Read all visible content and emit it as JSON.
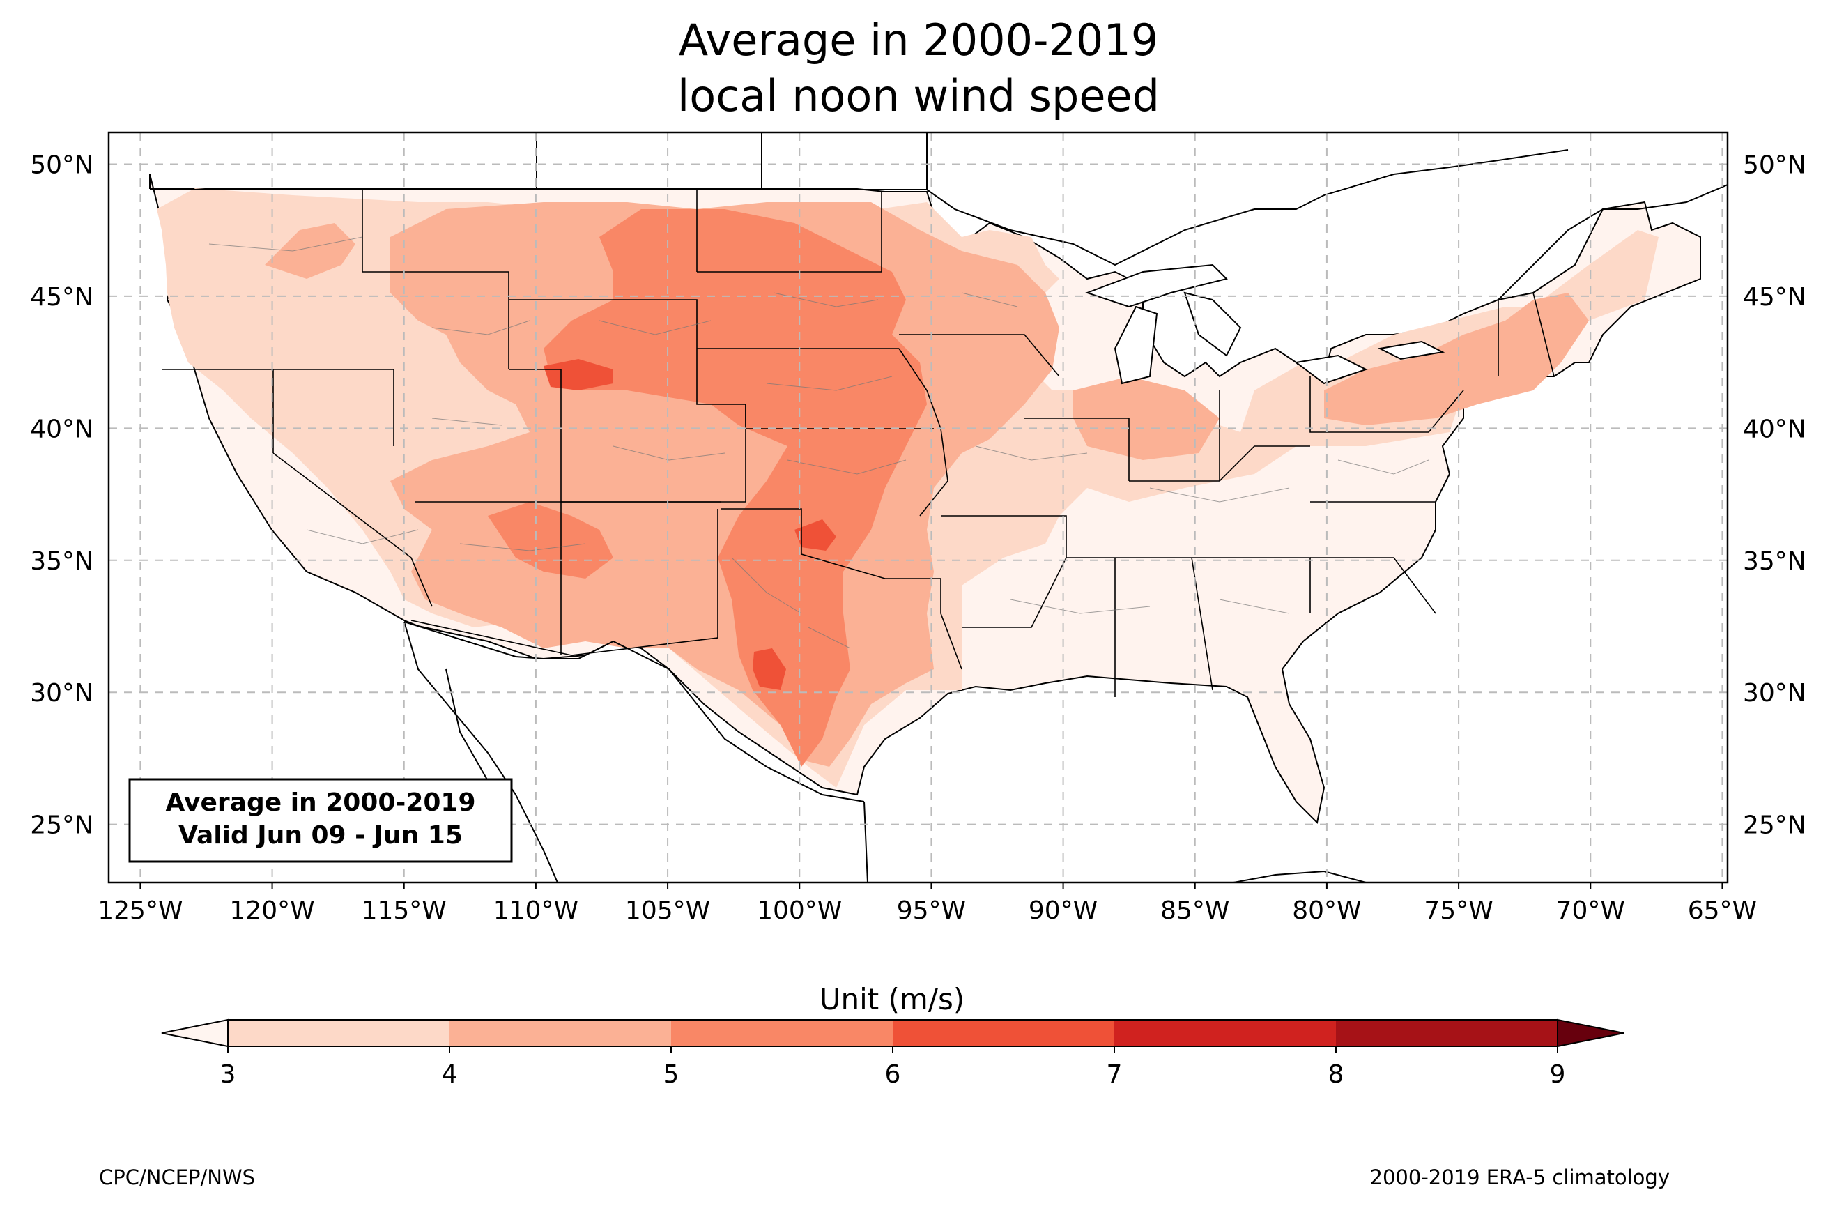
{
  "title": {
    "line1": "Average in 2000-2019",
    "line2": "local noon wind speed"
  },
  "info_box": {
    "line1": "Average in 2000-2019",
    "line2": "Valid Jun 09 - Jun 15"
  },
  "map": {
    "extent": {
      "lon": [
        -126.2,
        -64.8
      ],
      "lat": [
        22.8,
        51.2
      ]
    },
    "grid": true,
    "lon_ticks": [
      {
        "value": -125,
        "label": "125°W"
      },
      {
        "value": -120,
        "label": "120°W"
      },
      {
        "value": -115,
        "label": "115°W"
      },
      {
        "value": -110,
        "label": "110°W"
      },
      {
        "value": -105,
        "label": "105°W"
      },
      {
        "value": -100,
        "label": "100°W"
      },
      {
        "value": -95,
        "label": "95°W"
      },
      {
        "value": -90,
        "label": "90°W"
      },
      {
        "value": -85,
        "label": "85°W"
      },
      {
        "value": -80,
        "label": "80°W"
      },
      {
        "value": -75,
        "label": "75°W"
      },
      {
        "value": -70,
        "label": "70°W"
      },
      {
        "value": -65,
        "label": "65°W"
      }
    ],
    "lat_ticks": [
      {
        "value": 50,
        "label": "50°N"
      },
      {
        "value": 45,
        "label": "45°N"
      },
      {
        "value": 40,
        "label": "40°N"
      },
      {
        "value": 35,
        "label": "35°N"
      },
      {
        "value": 30,
        "label": "30°N"
      },
      {
        "value": 25,
        "label": "25°N"
      }
    ]
  },
  "colorbar": {
    "label": "Unit (m/s)",
    "ticks": [
      "3",
      "4",
      "5",
      "6",
      "7",
      "8",
      "9"
    ],
    "bins": [
      {
        "from": 3,
        "to": 4,
        "color": "#fdd9c8"
      },
      {
        "from": 4,
        "to": 5,
        "color": "#fbb195"
      },
      {
        "from": 5,
        "to": 6,
        "color": "#f98766"
      },
      {
        "from": 6,
        "to": 7,
        "color": "#ef5137"
      },
      {
        "from": 7,
        "to": 8,
        "color": "#d0221f"
      },
      {
        "from": 8,
        "to": 9,
        "color": "#a61217"
      }
    ],
    "under_color": "#fff5f0",
    "over_color": "#67000d"
  },
  "footer": {
    "left": "CPC/NCEP/NWS",
    "right": "2000-2019 ERA-5 climatology"
  }
}
